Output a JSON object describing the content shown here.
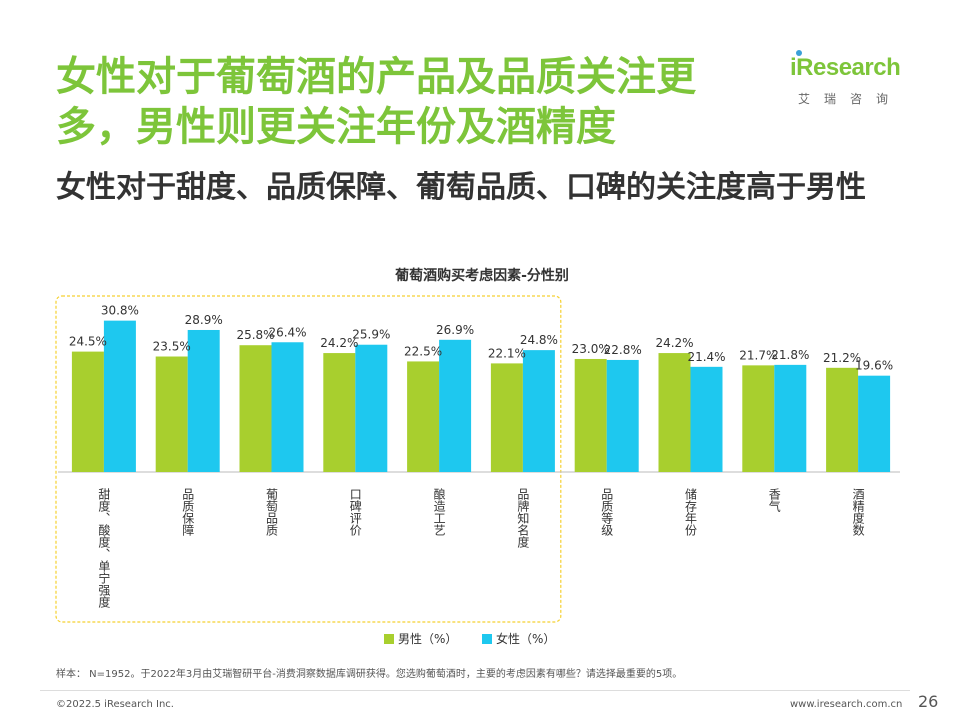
{
  "title": "女性对于葡萄酒的产品及品质关注更多，男性则更关注年份及酒精度",
  "subtitle": "女性对于甜度、品质保障、葡萄品质、口碑的关注度高于男性",
  "logo": {
    "brand": "iResearch",
    "cn": "艾瑞咨询"
  },
  "colors": {
    "male": "#a8cf2e",
    "female": "#1ec8ef",
    "highlight": "#f5d130",
    "title": "#7dc53a"
  },
  "chart_data": {
    "type": "bar",
    "title": "葡萄酒购买考虑因素-分性别",
    "categories": [
      "甜度、酸度、单宁强度",
      "品质保障",
      "葡萄品质",
      "口碑评价",
      "酿造工艺",
      "品牌知名度",
      "品质等级",
      "储存年份",
      "香气",
      "酒精度数"
    ],
    "series": [
      {
        "name": "男性（%）",
        "values": [
          24.5,
          23.5,
          25.8,
          24.2,
          22.5,
          22.1,
          23.0,
          24.2,
          21.7,
          21.2
        ]
      },
      {
        "name": "女性（%）",
        "values": [
          30.8,
          28.9,
          26.4,
          25.9,
          26.9,
          24.8,
          22.8,
          21.4,
          21.8,
          19.6
        ]
      }
    ],
    "value_labels": {
      "male": [
        "24.5%",
        "23.5%",
        "25.8%",
        "24.2%",
        "22.5%",
        "22.1%",
        "23.0%",
        "24.2%",
        "21.7%",
        "21.2%"
      ],
      "female": [
        "30.8%",
        "28.9%",
        "26.4%",
        "25.9%",
        "26.9%",
        "24.8%",
        "22.8%",
        "21.4%",
        "21.8%",
        "19.6%"
      ]
    },
    "highlighted_categories": 6,
    "ylim": [
      0,
      35
    ],
    "grid": false,
    "legend": "bottom"
  },
  "footnote": "样本： N=1952。于2022年3月由艾瑞智研平台-消费洞察数据库调研获得。您选购葡萄酒时，主要的考虑因素有哪些？请选择最重要的5项。",
  "footer": {
    "copyright": "©2022.5 iResearch Inc.",
    "website": "www.iresearch.com.cn",
    "page": "26"
  }
}
